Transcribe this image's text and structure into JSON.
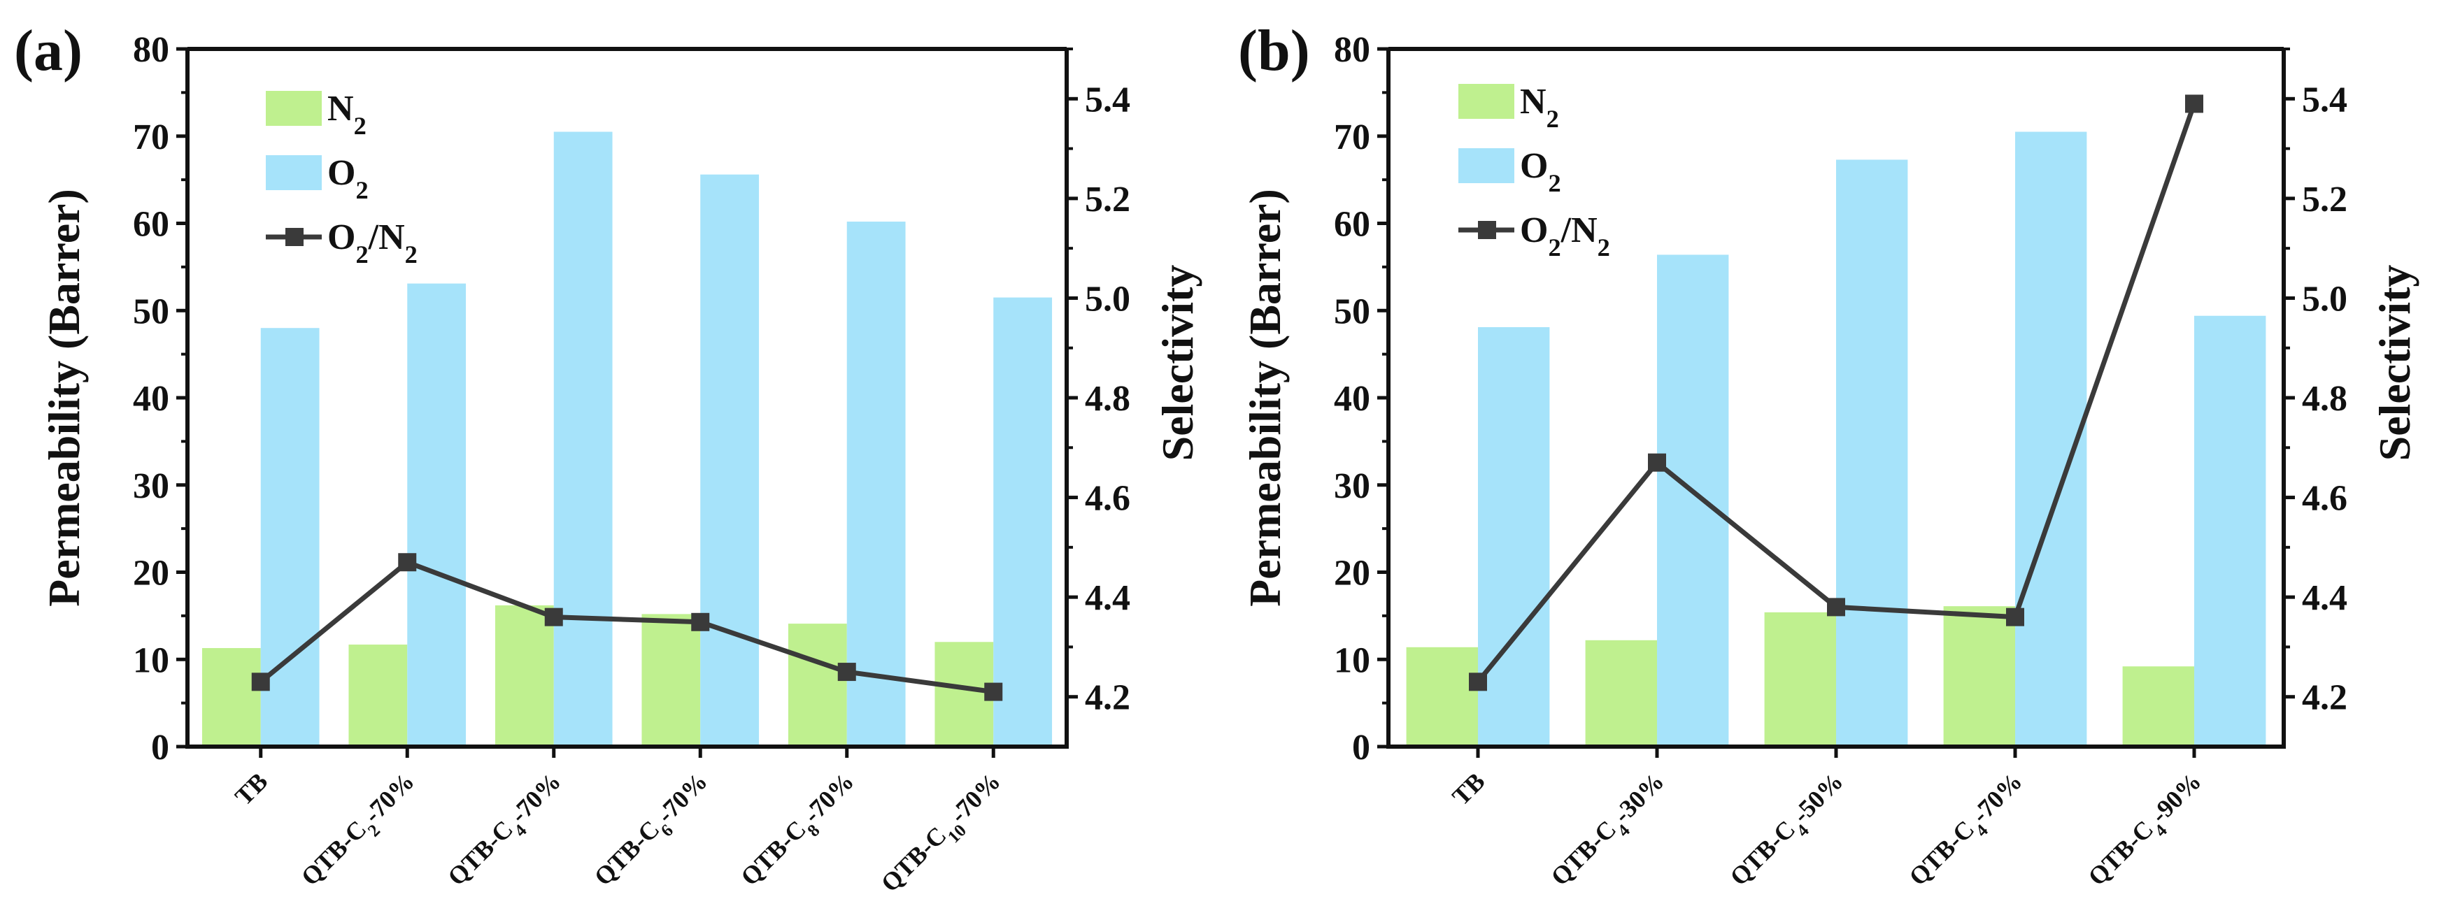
{
  "chart_data": [
    {
      "type": "bar",
      "panel_label": "(a)",
      "ylabel": "Permeability (Barrer)",
      "y2label": "Selectivity",
      "ylim": [
        0,
        80
      ],
      "yticks": [
        0,
        10,
        20,
        30,
        40,
        50,
        60,
        70,
        80
      ],
      "y2lim": [
        4.1,
        5.5
      ],
      "y2ticks": [
        "4.2",
        "4.4",
        "4.6",
        "4.8",
        "5.0",
        "5.2",
        "5.4"
      ],
      "categories": [
        {
          "pre": "TB",
          "sub": "",
          "post": ""
        },
        {
          "pre": "QTB-C",
          "sub": "2",
          "post": "-70%"
        },
        {
          "pre": "QTB-C",
          "sub": "4",
          "post": "-70%"
        },
        {
          "pre": "QTB-C",
          "sub": "6",
          "post": "-70%"
        },
        {
          "pre": "QTB-C",
          "sub": "8",
          "post": "-70%"
        },
        {
          "pre": "QTB-C",
          "sub": "10",
          "post": "-70%"
        }
      ],
      "series": [
        {
          "name": "N2",
          "legend": {
            "pre": "N",
            "sub": "2"
          },
          "type": "bar",
          "axis": "left",
          "color": "#bff08f",
          "values": [
            11.3,
            11.7,
            16.2,
            15.2,
            14.1,
            12.0
          ]
        },
        {
          "name": "O2",
          "legend": {
            "pre": "O",
            "sub": "2"
          },
          "type": "bar",
          "axis": "left",
          "color": "#a6e3fa",
          "values": [
            48.0,
            53.1,
            70.5,
            65.6,
            60.2,
            51.5
          ]
        },
        {
          "name": "O2/N2",
          "legend": {
            "pre": "O",
            "sub": "2",
            "post": "/N",
            "sub2": "2"
          },
          "type": "line",
          "axis": "right",
          "color": "#3a3a3a",
          "values": [
            4.23,
            4.47,
            4.36,
            4.35,
            4.25,
            4.21
          ]
        }
      ],
      "legend_position": "top-left"
    },
    {
      "type": "bar",
      "panel_label": "(b)",
      "ylabel": "Permeability (Barrer)",
      "y2label": "Selectivity",
      "ylim": [
        0,
        80
      ],
      "yticks": [
        0,
        10,
        20,
        30,
        40,
        50,
        60,
        70,
        80
      ],
      "y2lim": [
        4.1,
        5.5
      ],
      "y2ticks": [
        "4.2",
        "4.4",
        "4.6",
        "4.8",
        "5.0",
        "5.2",
        "5.4"
      ],
      "categories": [
        {
          "pre": "TB",
          "sub": "",
          "post": ""
        },
        {
          "pre": "QTB-C",
          "sub": "4",
          "post": "-30%"
        },
        {
          "pre": "QTB-C",
          "sub": "4",
          "post": "-50%"
        },
        {
          "pre": "QTB-C",
          "sub": "4",
          "post": "-70%"
        },
        {
          "pre": "QTB-C",
          "sub": "4",
          "post": "-90%"
        }
      ],
      "series": [
        {
          "name": "N2",
          "legend": {
            "pre": "N",
            "sub": "2"
          },
          "type": "bar",
          "axis": "left",
          "color": "#bff08f",
          "values": [
            11.4,
            12.2,
            15.4,
            16.1,
            9.2
          ]
        },
        {
          "name": "O2",
          "legend": {
            "pre": "O",
            "sub": "2"
          },
          "type": "bar",
          "axis": "left",
          "color": "#a6e3fa",
          "values": [
            48.1,
            56.4,
            67.3,
            70.5,
            49.4
          ]
        },
        {
          "name": "O2/N2",
          "legend": {
            "pre": "O",
            "sub": "2",
            "post": "/N",
            "sub2": "2"
          },
          "type": "line",
          "axis": "right",
          "color": "#3a3a3a",
          "values": [
            4.23,
            4.67,
            4.38,
            4.36,
            5.39
          ]
        }
      ],
      "legend_position": "top-left"
    }
  ]
}
